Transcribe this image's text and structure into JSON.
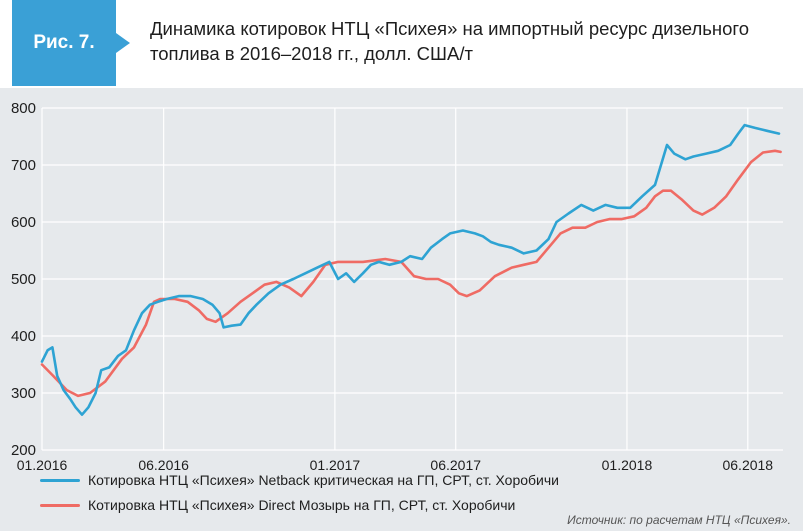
{
  "header": {
    "badge": "Рис. 7.",
    "title": "Динамика котировок НТЦ «Психея» на импортный ресурс дизельного топлива в 2016–2018 гг., долл. США/т"
  },
  "colors": {
    "badge": "#3aa0d6",
    "netback": "#2ea3d3",
    "direct": "#ef6b64",
    "background": "#e6e9ec",
    "grid": "#ffffff"
  },
  "chart_data": {
    "type": "line",
    "ylim": [
      200,
      800
    ],
    "yticks": [
      "200",
      "300",
      "400",
      "500",
      "600",
      "700",
      "800"
    ],
    "xlim": [
      "2016-01-01",
      "2018-07-15"
    ],
    "xticks": [
      {
        "label": "01.2016",
        "date": "2016-01-01"
      },
      {
        "label": "06.2016",
        "date": "2016-06-01"
      },
      {
        "label": "01.2017",
        "date": "2017-01-01"
      },
      {
        "label": "06.2017",
        "date": "2017-06-01"
      },
      {
        "label": "01.2018",
        "date": "2018-01-01"
      },
      {
        "label": "06.2018",
        "date": "2018-06-01"
      }
    ],
    "grid": true,
    "legend_position": "bottom",
    "series": [
      {
        "name": "Котировка НТЦ «Психея» Netback критическая на ГП, СРТ, ст. Хоробичи",
        "color": "#2ea3d3",
        "points": [
          [
            "2016-01-01",
            355
          ],
          [
            "2016-01-08",
            375
          ],
          [
            "2016-01-14",
            380
          ],
          [
            "2016-01-20",
            330
          ],
          [
            "2016-01-28",
            305
          ],
          [
            "2016-02-05",
            290
          ],
          [
            "2016-02-12",
            275
          ],
          [
            "2016-02-20",
            262
          ],
          [
            "2016-02-28",
            275
          ],
          [
            "2016-03-08",
            300
          ],
          [
            "2016-03-15",
            340
          ],
          [
            "2016-03-25",
            345
          ],
          [
            "2016-04-05",
            365
          ],
          [
            "2016-04-15",
            375
          ],
          [
            "2016-04-25",
            410
          ],
          [
            "2016-05-05",
            440
          ],
          [
            "2016-05-15",
            455
          ],
          [
            "2016-05-25",
            460
          ],
          [
            "2016-06-05",
            465
          ],
          [
            "2016-06-20",
            470
          ],
          [
            "2016-07-05",
            470
          ],
          [
            "2016-07-20",
            465
          ],
          [
            "2016-08-01",
            455
          ],
          [
            "2016-08-10",
            440
          ],
          [
            "2016-08-15",
            415
          ],
          [
            "2016-08-25",
            418
          ],
          [
            "2016-09-05",
            420
          ],
          [
            "2016-09-15",
            440
          ],
          [
            "2016-09-25",
            455
          ],
          [
            "2016-10-10",
            475
          ],
          [
            "2016-10-25",
            490
          ],
          [
            "2016-11-10",
            500
          ],
          [
            "2016-11-25",
            510
          ],
          [
            "2016-12-10",
            520
          ],
          [
            "2016-12-25",
            530
          ],
          [
            "2017-01-05",
            500
          ],
          [
            "2017-01-15",
            510
          ],
          [
            "2017-01-25",
            495
          ],
          [
            "2017-02-05",
            510
          ],
          [
            "2017-02-15",
            525
          ],
          [
            "2017-02-25",
            530
          ],
          [
            "2017-03-10",
            525
          ],
          [
            "2017-03-25",
            530
          ],
          [
            "2017-04-05",
            540
          ],
          [
            "2017-04-20",
            535
          ],
          [
            "2017-05-01",
            555
          ],
          [
            "2017-05-15",
            570
          ],
          [
            "2017-05-25",
            580
          ],
          [
            "2017-06-10",
            585
          ],
          [
            "2017-06-25",
            580
          ],
          [
            "2017-07-05",
            575
          ],
          [
            "2017-07-15",
            565
          ],
          [
            "2017-07-25",
            560
          ],
          [
            "2017-08-10",
            555
          ],
          [
            "2017-08-25",
            545
          ],
          [
            "2017-09-10",
            550
          ],
          [
            "2017-09-25",
            570
          ],
          [
            "2017-10-05",
            600
          ],
          [
            "2017-10-20",
            615
          ],
          [
            "2017-11-05",
            630
          ],
          [
            "2017-11-20",
            620
          ],
          [
            "2017-12-05",
            630
          ],
          [
            "2017-12-20",
            625
          ],
          [
            "2018-01-05",
            625
          ],
          [
            "2018-01-20",
            645
          ],
          [
            "2018-02-05",
            665
          ],
          [
            "2018-02-20",
            735
          ],
          [
            "2018-03-01",
            720
          ],
          [
            "2018-03-15",
            710
          ],
          [
            "2018-03-25",
            715
          ],
          [
            "2018-04-10",
            720
          ],
          [
            "2018-04-25",
            725
          ],
          [
            "2018-05-10",
            735
          ],
          [
            "2018-05-20",
            755
          ],
          [
            "2018-05-28",
            770
          ],
          [
            "2018-06-10",
            765
          ],
          [
            "2018-06-25",
            760
          ],
          [
            "2018-07-10",
            755
          ]
        ]
      },
      {
        "name": "Котировка НТЦ «Психея» Direct Мозырь на ГП, СРТ, ст. Хоробичи",
        "color": "#ef6b64",
        "points": [
          [
            "2016-01-01",
            350
          ],
          [
            "2016-01-15",
            330
          ],
          [
            "2016-02-01",
            305
          ],
          [
            "2016-02-15",
            295
          ],
          [
            "2016-03-01",
            300
          ],
          [
            "2016-03-20",
            320
          ],
          [
            "2016-04-10",
            360
          ],
          [
            "2016-04-25",
            380
          ],
          [
            "2016-05-10",
            420
          ],
          [
            "2016-05-20",
            460
          ],
          [
            "2016-05-28",
            465
          ],
          [
            "2016-06-15",
            465
          ],
          [
            "2016-07-01",
            460
          ],
          [
            "2016-07-15",
            445
          ],
          [
            "2016-07-25",
            430
          ],
          [
            "2016-08-05",
            425
          ],
          [
            "2016-08-20",
            440
          ],
          [
            "2016-09-05",
            460
          ],
          [
            "2016-09-20",
            475
          ],
          [
            "2016-10-05",
            490
          ],
          [
            "2016-10-20",
            495
          ],
          [
            "2016-11-05",
            485
          ],
          [
            "2016-11-20",
            470
          ],
          [
            "2016-12-05",
            495
          ],
          [
            "2016-12-20",
            525
          ],
          [
            "2017-01-05",
            530
          ],
          [
            "2017-02-05",
            530
          ],
          [
            "2017-03-05",
            535
          ],
          [
            "2017-03-25",
            530
          ],
          [
            "2017-04-10",
            505
          ],
          [
            "2017-04-25",
            500
          ],
          [
            "2017-05-10",
            500
          ],
          [
            "2017-05-25",
            490
          ],
          [
            "2017-06-05",
            475
          ],
          [
            "2017-06-15",
            470
          ],
          [
            "2017-07-01",
            480
          ],
          [
            "2017-07-20",
            505
          ],
          [
            "2017-08-10",
            520
          ],
          [
            "2017-08-25",
            525
          ],
          [
            "2017-09-10",
            530
          ],
          [
            "2017-09-25",
            555
          ],
          [
            "2017-10-10",
            580
          ],
          [
            "2017-10-25",
            590
          ],
          [
            "2017-11-10",
            590
          ],
          [
            "2017-11-25",
            600
          ],
          [
            "2017-12-10",
            605
          ],
          [
            "2017-12-25",
            605
          ],
          [
            "2018-01-10",
            610
          ],
          [
            "2018-01-25",
            625
          ],
          [
            "2018-02-05",
            645
          ],
          [
            "2018-02-15",
            655
          ],
          [
            "2018-02-25",
            655
          ],
          [
            "2018-03-10",
            640
          ],
          [
            "2018-03-25",
            620
          ],
          [
            "2018-04-05",
            613
          ],
          [
            "2018-04-20",
            625
          ],
          [
            "2018-05-05",
            645
          ],
          [
            "2018-05-20",
            675
          ],
          [
            "2018-06-05",
            705
          ],
          [
            "2018-06-20",
            722
          ],
          [
            "2018-07-05",
            725
          ],
          [
            "2018-07-12",
            723
          ]
        ]
      }
    ]
  },
  "source": "Источник: по расчетам НТЦ «Психея»."
}
